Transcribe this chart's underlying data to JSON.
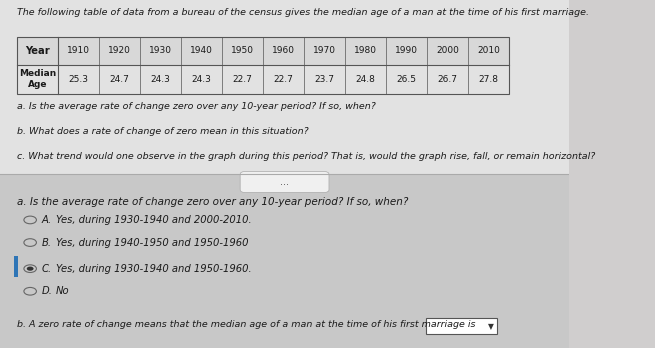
{
  "title_text": "The following table of data from a bureau of the census gives the median age of a man at the time of his first marriage.",
  "table_years": [
    "1910",
    "1920",
    "1930",
    "1940",
    "1950",
    "1960",
    "1970",
    "1980",
    "1990",
    "2000",
    "2010"
  ],
  "table_ages": [
    "25.3",
    "24.7",
    "24.3",
    "24.3",
    "22.7",
    "22.7",
    "23.7",
    "24.8",
    "26.5",
    "26.7",
    "27.8"
  ],
  "questions": [
    "a. Is the average rate of change zero over any 10-year period? If so, when?",
    "b. What does a rate of change of zero mean in this situation?",
    "c. What trend would one observe in the graph during this period? That is, would the graph rise, fall, or remain horizontal?"
  ],
  "dots_text": "...",
  "part_a_question": "a. Is the average rate of change zero over any 10-year period? If so, when?",
  "options": [
    {
      "label": "A.",
      "text": "Yes, during 1930-1940 and 2000-2010.",
      "selected": false
    },
    {
      "label": "B.",
      "text": "Yes, during 1940-1950 and 1950-1960",
      "selected": false
    },
    {
      "label": "C.",
      "text": "Yes, during 1930-1940 and 1950-1960.",
      "selected": true
    },
    {
      "label": "D.",
      "text": "No",
      "selected": false
    }
  ],
  "part_b_text": "b. A zero rate of change means that the median age of a man at the time of his first marriage is",
  "bg_color": "#d0cece",
  "top_bg_color": "#e2e2e2",
  "bottom_bg_color": "#c8c8c8",
  "text_color": "#1a1a1a",
  "divider_color": "#aaaaaa"
}
